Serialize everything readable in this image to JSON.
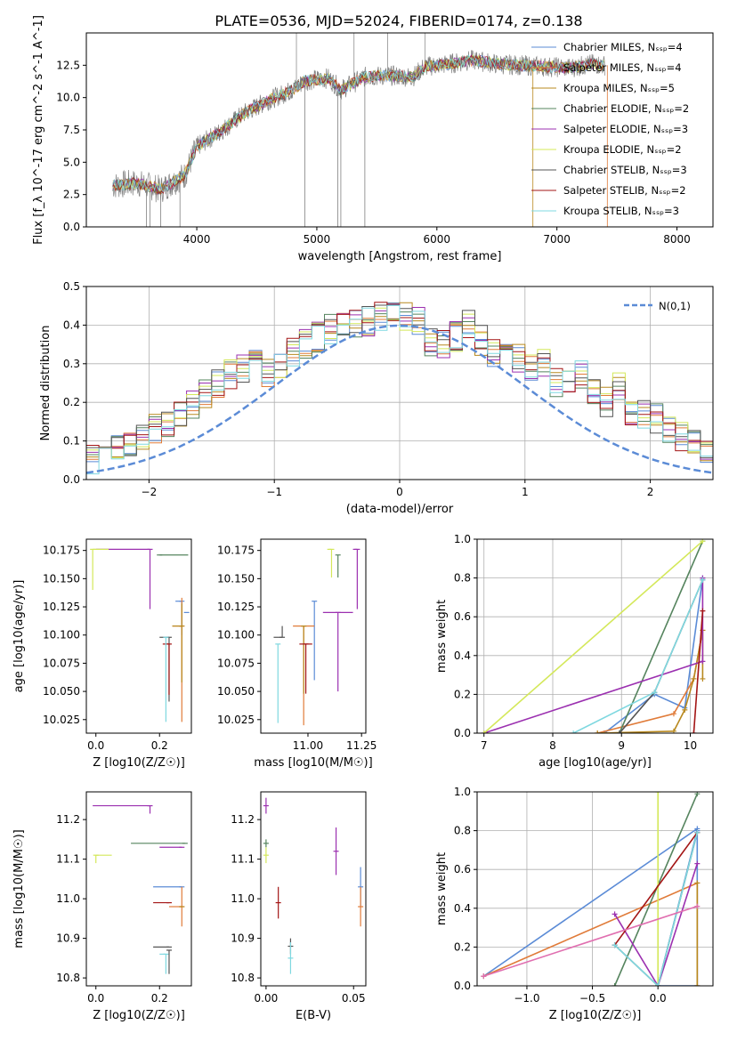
{
  "figure": {
    "title": "PLATE=0536, MJD=52024, FIBERID=0174, z=0.138",
    "models": [
      {
        "name": "Chabrier MILES, N_SSP=4",
        "color": "#5b8bd6"
      },
      {
        "name": "Salpeter MILES, N_SSP=4",
        "color": "#e07b39"
      },
      {
        "name": "Kroupa MILES, N_SSP=5",
        "color": "#b8891f"
      },
      {
        "name": "Chabrier ELODIE, N_SSP=2",
        "color": "#55845e"
      },
      {
        "name": "Salpeter ELODIE, N_SSP=3",
        "color": "#9b30b0"
      },
      {
        "name": "Kroupa ELODIE, N_SSP=2",
        "color": "#d4e85a"
      },
      {
        "name": "Chabrier STELIB, N_SSP=3",
        "color": "#555555"
      },
      {
        "name": "Salpeter STELIB, N_SSP=2",
        "color": "#a31515"
      },
      {
        "name": "Kroupa STELIB, N_SSP=3",
        "color": "#7fd8e0"
      }
    ],
    "data_color": "#808080"
  },
  "chart_data": [
    {
      "id": "spectrum",
      "type": "line",
      "xlabel": "wavelength [Angstrom, rest frame]",
      "ylabel": "Flux [f_λ 10^-17 erg cm^-2 s^-1 A^-1]",
      "xlim": [
        3080,
        8300
      ],
      "ylim": [
        0,
        15
      ],
      "xticks": [
        4000,
        5000,
        6000,
        7000,
        8000
      ],
      "yticks": [
        0.0,
        2.5,
        5.0,
        7.5,
        10.0,
        12.5
      ],
      "legend_position": "top-right",
      "continuum": [
        [
          3300,
          3.2
        ],
        [
          3500,
          3.4
        ],
        [
          3700,
          2.9
        ],
        [
          3900,
          4.0
        ],
        [
          4000,
          6.2
        ],
        [
          4200,
          7.4
        ],
        [
          4400,
          8.8
        ],
        [
          4600,
          9.8
        ],
        [
          4800,
          10.6
        ],
        [
          4900,
          11.3
        ],
        [
          5100,
          11.5
        ],
        [
          5200,
          10.6
        ],
        [
          5400,
          11.6
        ],
        [
          5600,
          11.7
        ],
        [
          5800,
          11.6
        ],
        [
          5900,
          12.4
        ],
        [
          6100,
          12.6
        ],
        [
          6300,
          12.9
        ],
        [
          6500,
          12.6
        ],
        [
          6700,
          12.5
        ],
        [
          6900,
          12.4
        ],
        [
          7100,
          12.3
        ],
        [
          7300,
          12.6
        ],
        [
          7400,
          12.5
        ]
      ],
      "spikes_up": [
        4830,
        5310,
        5590,
        5900
      ],
      "spikes_down": [
        3580,
        3610,
        3700,
        3860,
        4900,
        5175,
        5200,
        5400,
        6800,
        7420
      ]
    },
    {
      "id": "residuals",
      "type": "histogram",
      "xlabel": "(data-model)/error",
      "ylabel": "Normed distribution",
      "xlim": [
        -2.5,
        2.5
      ],
      "ylim": [
        0,
        0.5
      ],
      "xticks": [
        -2,
        -1,
        0,
        1,
        2
      ],
      "yticks": [
        0.0,
        0.1,
        0.2,
        0.3,
        0.4,
        0.5
      ],
      "grid": true,
      "bin_width": 0.1,
      "normal_curve_label": "N(0,1)",
      "normal_color": "#5b8bd6",
      "base_histogram": [
        0.02,
        0.02,
        0.03,
        0.03,
        0.04,
        0.05,
        0.06,
        0.08,
        0.1,
        0.11,
        0.13,
        0.15,
        0.17,
        0.19,
        0.22,
        0.25,
        0.27,
        0.29,
        0.3,
        0.28,
        0.3,
        0.33,
        0.35,
        0.37,
        0.39,
        0.4,
        0.4,
        0.41,
        0.42,
        0.43,
        0.42,
        0.41,
        0.36,
        0.35,
        0.37,
        0.4,
        0.36,
        0.33,
        0.34,
        0.31,
        0.29,
        0.3,
        0.25,
        0.26,
        0.27,
        0.22,
        0.2,
        0.24,
        0.18,
        0.17,
        0.16,
        0.13,
        0.11,
        0.1,
        0.08,
        0.06,
        0.05,
        0.04,
        0.03,
        0.03
      ]
    },
    {
      "id": "age-vs-Z",
      "type": "scatter",
      "xlabel": "Z [log10(Z/Z☉)]",
      "ylabel": "age [log10(age/yr)]",
      "xlim": [
        -0.03,
        0.3
      ],
      "ylim": [
        10.013,
        10.185
      ],
      "xticks": [
        0.0,
        0.2
      ],
      "yticks": [
        10.025,
        10.05,
        10.075,
        10.1,
        10.125,
        10.15,
        10.175
      ],
      "points": [
        {
          "model": 0,
          "x": 0.27,
          "y": 10.13,
          "xerr": [
            0.02,
            0.0
          ],
          "yerr": [
            0.03,
            0.0
          ]
        },
        {
          "model": 1,
          "x": 0.27,
          "y": 10.108,
          "xerr": [
            0.03,
            0.0
          ],
          "yerr": [
            0.085,
            0.025
          ]
        },
        {
          "model": 2,
          "x": 0.27,
          "y": 10.108,
          "xerr": [
            0.03,
            0.0
          ],
          "yerr": [
            0.05,
            0.02
          ]
        },
        {
          "model": 3,
          "x": 0.2,
          "y": 10.171,
          "xerr": [
            0.0,
            0.09
          ],
          "yerr": [
            0.0,
            0.0
          ]
        },
        {
          "model": 4,
          "x": 0.17,
          "y": 10.176,
          "xerr": [
            0.17,
            0.0
          ],
          "yerr": [
            0.053,
            0.0
          ]
        },
        {
          "model": 5,
          "x": -0.01,
          "y": 10.176,
          "xerr": [
            0.0,
            0.05
          ],
          "yerr": [
            0.036,
            0.0
          ]
        },
        {
          "model": 6,
          "x": 0.23,
          "y": 10.098,
          "xerr": [
            0.03,
            0.0
          ],
          "yerr": [
            0.057,
            0.0
          ]
        },
        {
          "model": 7,
          "x": 0.23,
          "y": 10.092,
          "xerr": [
            0.02,
            0.0
          ],
          "yerr": [
            0.045,
            0.0
          ]
        },
        {
          "model": 8,
          "x": 0.22,
          "y": 10.098,
          "xerr": [
            0.0,
            0.0
          ],
          "yerr": [
            0.075,
            0.0
          ]
        },
        {
          "model": 0,
          "x": 0.285,
          "y": 10.12,
          "xerr": [
            0.0,
            0.0
          ],
          "yerr": [
            0.0,
            0.0
          ]
        }
      ]
    },
    {
      "id": "age-vs-mass",
      "type": "scatter",
      "xlabel": "mass [log10(M/M☉)]",
      "ylabel": "",
      "xlim": [
        10.78,
        11.27
      ],
      "ylim": [
        10.013,
        10.185
      ],
      "xticks": [
        11.0,
        11.25
      ],
      "yticks": [
        10.025,
        10.05,
        10.075,
        10.1,
        10.125,
        10.15,
        10.175
      ],
      "points": [
        {
          "model": 0,
          "x": 11.03,
          "y": 10.13,
          "xerr": [
            0.0,
            0.0
          ],
          "yerr": [
            0.07,
            0.0
          ]
        },
        {
          "model": 1,
          "x": 10.98,
          "y": 10.108,
          "xerr": [
            0.05,
            0.05
          ],
          "yerr": [
            0.088,
            0.0
          ]
        },
        {
          "model": 2,
          "x": 10.98,
          "y": 10.108,
          "xerr": [
            0.0,
            0.0
          ],
          "yerr": [
            0.06,
            0.0
          ]
        },
        {
          "model": 3,
          "x": 11.14,
          "y": 10.171,
          "xerr": [
            0.0,
            0.0
          ],
          "yerr": [
            0.02,
            0.0
          ]
        },
        {
          "model": 4,
          "x": 11.23,
          "y": 10.176,
          "xerr": [
            0.02,
            0.0
          ],
          "yerr": [
            0.053,
            0.0
          ]
        },
        {
          "model": 5,
          "x": 11.11,
          "y": 10.176,
          "xerr": [
            0.02,
            0.0
          ],
          "yerr": [
            0.025,
            0.0
          ]
        },
        {
          "model": 6,
          "x": 10.88,
          "y": 10.098,
          "xerr": [
            0.04,
            0.0
          ],
          "yerr": [
            0.0,
            0.01
          ]
        },
        {
          "model": 7,
          "x": 10.99,
          "y": 10.092,
          "xerr": [
            0.03,
            0.03
          ],
          "yerr": [
            0.044,
            0.0
          ]
        },
        {
          "model": 8,
          "x": 10.86,
          "y": 10.092,
          "xerr": [
            0.0,
            0.0
          ],
          "yerr": [
            0.07,
            0.0
          ]
        },
        {
          "model": 4,
          "x": 11.14,
          "y": 10.12,
          "xerr": [
            0.07,
            0.07
          ],
          "yerr": [
            0.07,
            0.0
          ]
        }
      ]
    },
    {
      "id": "massweight-vs-age",
      "type": "line",
      "xlabel": "age [log10(age/yr)]",
      "ylabel": "mass weight",
      "xlim": [
        6.9,
        10.33
      ],
      "ylim": [
        0,
        1
      ],
      "xticks": [
        7,
        8,
        9,
        10
      ],
      "yticks": [
        0.0,
        0.2,
        0.4,
        0.6,
        0.8,
        1.0
      ],
      "grid": true,
      "series": [
        {
          "model": 0,
          "x": [
            8.75,
            9.48,
            9.92,
            10.18
          ],
          "y": [
            0.0,
            0.2,
            0.13,
            0.8
          ]
        },
        {
          "model": 1,
          "x": [
            8.65,
            9.76,
            10.05,
            10.18
          ],
          "y": [
            0.0,
            0.1,
            0.28,
            0.53
          ]
        },
        {
          "model": 2,
          "x": [
            8.65,
            9.76,
            9.92,
            10.05,
            10.18,
            10.18
          ],
          "y": [
            0.0,
            0.01,
            0.12,
            0.28,
            0.53,
            0.28
          ]
        },
        {
          "model": 3,
          "x": [
            8.97,
            10.18
          ],
          "y": [
            0.0,
            0.99
          ]
        },
        {
          "model": 4,
          "x": [
            7.0,
            10.18,
            10.18
          ],
          "y": [
            0.0,
            0.37,
            0.8
          ]
        },
        {
          "model": 5,
          "x": [
            7.0,
            10.18
          ],
          "y": [
            0.0,
            0.99
          ]
        },
        {
          "model": 6,
          "x": [
            8.97,
            9.48,
            10.18
          ],
          "y": [
            0.0,
            0.21,
            0.79
          ]
        },
        {
          "model": 7,
          "x": [
            10.05,
            10.18
          ],
          "y": [
            0.0,
            0.63
          ]
        },
        {
          "model": 8,
          "x": [
            8.3,
            9.48,
            10.18
          ],
          "y": [
            0.0,
            0.21,
            0.79
          ]
        }
      ]
    },
    {
      "id": "mass-vs-Z",
      "type": "scatter",
      "xlabel": "Z [log10(Z/Z☉)]",
      "ylabel": "mass [log10(M/M☉)]",
      "xlim": [
        -0.03,
        0.3
      ],
      "ylim": [
        10.78,
        11.27
      ],
      "xticks": [
        0.0,
        0.2
      ],
      "yticks": [
        10.8,
        10.9,
        11.0,
        11.1,
        11.2
      ],
      "points": [
        {
          "model": 0,
          "x": 0.27,
          "y": 11.03,
          "xerr": [
            0.09,
            0.0
          ],
          "yerr": [
            0.0,
            0.0
          ]
        },
        {
          "model": 1,
          "x": 0.27,
          "y": 10.98,
          "xerr": [
            0.04,
            0.0
          ],
          "yerr": [
            0.05,
            0.05
          ]
        },
        {
          "model": 2,
          "x": 0.27,
          "y": 10.98,
          "xerr": [
            0.0,
            0.0
          ],
          "yerr": [
            0.0,
            0.0
          ]
        },
        {
          "model": 3,
          "x": 0.28,
          "y": 11.14,
          "xerr": [
            0.17,
            0.0
          ],
          "yerr": [
            0.0,
            0.0
          ]
        },
        {
          "model": 4,
          "x": 0.17,
          "y": 11.235,
          "xerr": [
            0.18,
            0.0
          ],
          "yerr": [
            0.02,
            0.0
          ]
        },
        {
          "model": 5,
          "x": 0.0,
          "y": 11.11,
          "xerr": [
            0.0,
            0.05
          ],
          "yerr": [
            0.02,
            0.0
          ]
        },
        {
          "model": 6,
          "x": 0.23,
          "y": 10.878,
          "xerr": [
            0.05,
            0.0
          ],
          "yerr": [
            0.0,
            0.0
          ]
        },
        {
          "model": 7,
          "x": 0.23,
          "y": 10.99,
          "xerr": [
            0.05,
            0.0
          ],
          "yerr": [
            0.0,
            0.0
          ]
        },
        {
          "model": 8,
          "x": 0.22,
          "y": 10.86,
          "xerr": [
            0.02,
            0.0
          ],
          "yerr": [
            0.05,
            0.0
          ]
        },
        {
          "model": 4,
          "x": 0.27,
          "y": 11.13,
          "xerr": [
            0.07,
            0.0
          ],
          "yerr": [
            0.0,
            0.0
          ]
        },
        {
          "model": 6,
          "x": 0.23,
          "y": 10.87,
          "xerr": [
            0.0,
            0.0
          ],
          "yerr": [
            0.06,
            0.0
          ]
        }
      ]
    },
    {
      "id": "mass-vs-EBV",
      "type": "scatter",
      "xlabel": "E(B-V)",
      "ylabel": "",
      "xlim": [
        -0.003,
        0.057
      ],
      "ylim": [
        10.78,
        11.27
      ],
      "xticks": [
        0.0,
        0.05
      ],
      "yticks": [
        10.8,
        10.9,
        11.0,
        11.1,
        11.2
      ],
      "points": [
        {
          "model": 0,
          "x": 0.054,
          "y": 11.03,
          "yerr": [
            0.05,
            0.05
          ]
        },
        {
          "model": 1,
          "x": 0.054,
          "y": 10.98,
          "yerr": [
            0.05,
            0.05
          ]
        },
        {
          "model": 3,
          "x": 0.0,
          "y": 11.14,
          "yerr": [
            0.01,
            0.01
          ]
        },
        {
          "model": 4,
          "x": 0.0,
          "y": 11.235,
          "yerr": [
            0.02,
            0.02
          ]
        },
        {
          "model": 5,
          "x": 0.0,
          "y": 11.11,
          "yerr": [
            0.02,
            0.02
          ]
        },
        {
          "model": 6,
          "x": 0.014,
          "y": 10.88,
          "yerr": [
            0.02,
            0.02
          ]
        },
        {
          "model": 7,
          "x": 0.007,
          "y": 10.99,
          "yerr": [
            0.04,
            0.04
          ]
        },
        {
          "model": 8,
          "x": 0.014,
          "y": 10.85,
          "yerr": [
            0.04,
            0.04
          ]
        },
        {
          "model": 4,
          "x": 0.04,
          "y": 11.12,
          "yerr": [
            0.06,
            0.06
          ]
        }
      ]
    },
    {
      "id": "massweight-vs-Z",
      "type": "line",
      "xlabel": "Z [log10(Z/Z☉)]",
      "ylabel": "mass weight",
      "xlim": [
        -1.38,
        0.42
      ],
      "ylim": [
        0,
        1
      ],
      "xticks": [
        -1.0,
        -0.5,
        0.0
      ],
      "yticks": [
        0.0,
        0.2,
        0.4,
        0.6,
        0.8,
        1.0
      ],
      "grid": true,
      "series": [
        {
          "model": 0,
          "x": [
            -1.33,
            0.3,
            0.3,
            0.0,
            0.3
          ],
          "y": [
            0.05,
            0.81,
            0.0,
            0.0,
            0.8
          ]
        },
        {
          "model": 1,
          "x": [
            -1.33,
            0.3,
            0.3
          ],
          "y": [
            0.05,
            0.53,
            0.0
          ]
        },
        {
          "model": 2,
          "x": [
            0.3,
            0.3
          ],
          "y": [
            0.53,
            0.0
          ]
        },
        {
          "model": 3,
          "x": [
            -0.33,
            0.3
          ],
          "y": [
            0.0,
            0.99
          ]
        },
        {
          "model": 4,
          "x": [
            -0.33,
            0.0,
            0.3
          ],
          "y": [
            0.37,
            0.0,
            0.63
          ]
        },
        {
          "model": 5,
          "x": [
            0.0,
            0.0
          ],
          "y": [
            0.0,
            1.0
          ]
        },
        {
          "model": 6,
          "x": [
            -0.33,
            0.0,
            0.3
          ],
          "y": [
            0.21,
            0.0,
            0.79
          ]
        },
        {
          "model": 7,
          "x": [
            -0.33,
            0.3
          ],
          "y": [
            0.21,
            0.79
          ]
        },
        {
          "model": 8,
          "x": [
            -0.33,
            0.0,
            0.3
          ],
          "y": [
            0.21,
            0.0,
            0.79
          ]
        },
        {
          "model": 4,
          "x": [
            -1.33,
            0.3
          ],
          "y": [
            0.05,
            0.41
          ],
          "color": "#e06fb0"
        }
      ]
    }
  ]
}
